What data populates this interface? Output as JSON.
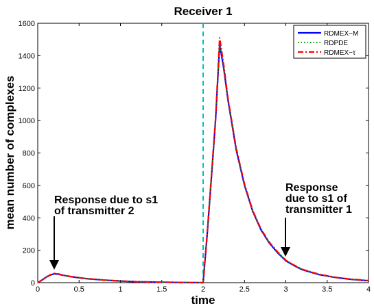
{
  "chart_data": {
    "type": "line",
    "title": "Receiver 1",
    "xlabel": "time",
    "ylabel": "mean number of complexes",
    "xlim": [
      0,
      4
    ],
    "ylim": [
      0,
      1600
    ],
    "xticks": [
      "0",
      "0.5",
      "1",
      "1.5",
      "2",
      "2.5",
      "3",
      "3.5",
      "4"
    ],
    "yticks": [
      "0",
      "200",
      "400",
      "600",
      "800",
      "1000",
      "1200",
      "1400",
      "1600"
    ],
    "grid": false,
    "legend_position": "top-right",
    "vertical_line": {
      "x": 2,
      "color": "#00bfbf",
      "style": "dashed"
    },
    "series": [
      {
        "name": "RDMEX−M",
        "color": "#0000ff",
        "style": "solid",
        "x": [
          0,
          0.05,
          0.1,
          0.15,
          0.2,
          0.25,
          0.3,
          0.4,
          0.5,
          0.6,
          0.8,
          1.0,
          1.2,
          1.5,
          1.8,
          2.0,
          2.05,
          2.1,
          2.15,
          2.2,
          2.25,
          2.3,
          2.4,
          2.5,
          2.6,
          2.7,
          2.8,
          2.9,
          3.0,
          3.1,
          3.2,
          3.4,
          3.6,
          3.8,
          4.0
        ],
        "values": [
          0,
          15,
          33,
          47,
          55,
          52,
          46,
          37,
          30,
          24,
          16,
          10,
          6,
          3,
          1,
          0,
          300,
          650,
          1000,
          1470,
          1320,
          1130,
          820,
          600,
          440,
          325,
          245,
          185,
          135,
          105,
          80,
          50,
          32,
          20,
          12
        ]
      },
      {
        "name": "RDPDE",
        "color": "#00a000",
        "style": "dotted",
        "x": [
          0,
          0.05,
          0.1,
          0.15,
          0.2,
          0.25,
          0.3,
          0.4,
          0.5,
          0.6,
          0.8,
          1.0,
          1.2,
          1.5,
          1.8,
          2.0,
          2.05,
          2.1,
          2.15,
          2.2,
          2.25,
          2.3,
          2.4,
          2.5,
          2.6,
          2.7,
          2.8,
          2.9,
          3.0,
          3.1,
          3.2,
          3.4,
          3.6,
          3.8,
          4.0
        ],
        "values": [
          0,
          15,
          33,
          47,
          55,
          52,
          46,
          37,
          30,
          24,
          16,
          10,
          6,
          3,
          1,
          0,
          300,
          650,
          1000,
          1480,
          1325,
          1135,
          825,
          602,
          442,
          327,
          247,
          187,
          137,
          106,
          81,
          51,
          32,
          20,
          12
        ]
      },
      {
        "name": "RDMEX−τ",
        "color": "#ff0000",
        "style": "dashdot",
        "x": [
          0,
          0.05,
          0.1,
          0.15,
          0.2,
          0.25,
          0.3,
          0.4,
          0.5,
          0.6,
          0.8,
          1.0,
          1.2,
          1.5,
          1.8,
          2.0,
          2.05,
          2.1,
          2.15,
          2.2,
          2.25,
          2.3,
          2.4,
          2.5,
          2.6,
          2.7,
          2.8,
          2.9,
          3.0,
          3.1,
          3.2,
          3.4,
          3.6,
          3.8,
          4.0
        ],
        "values": [
          0,
          16,
          34,
          48,
          57,
          54,
          47,
          38,
          31,
          25,
          16,
          10,
          6,
          3,
          1,
          0,
          305,
          660,
          1010,
          1510,
          1340,
          1140,
          830,
          608,
          445,
          330,
          250,
          190,
          138,
          108,
          82,
          52,
          33,
          21,
          13
        ]
      }
    ],
    "annotations": [
      {
        "lines": [
          "Response due to s1",
          "of transmitter 2"
        ],
        "arrow_to": [
          0.2,
          55
        ]
      },
      {
        "lines": [
          "Response",
          "due to s1 of",
          "transmitter 1"
        ],
        "arrow_to": [
          3.0,
          135
        ]
      }
    ]
  }
}
